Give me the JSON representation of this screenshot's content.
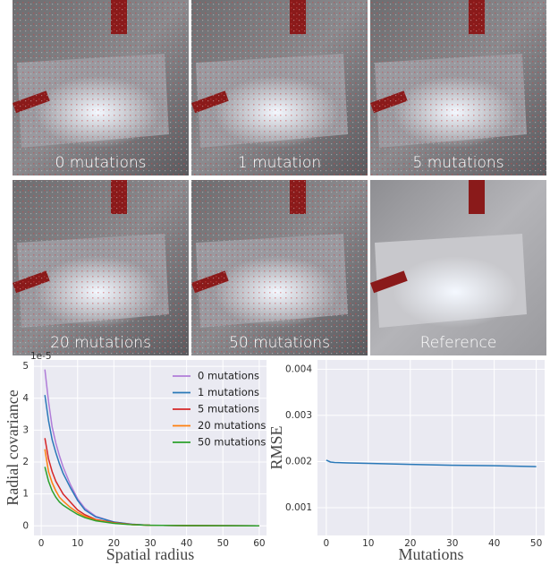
{
  "images": [
    {
      "caption": "0 mutations"
    },
    {
      "caption": "1 mutation"
    },
    {
      "caption": "5 mutations"
    },
    {
      "caption": "20 mutations"
    },
    {
      "caption": "50 mutations"
    },
    {
      "caption": "Reference"
    }
  ],
  "chart_data": [
    {
      "type": "line",
      "xlabel": "Spatial radius",
      "ylabel": "Radial covariance",
      "y_offset_label": "1e-5",
      "x": [
        1,
        2,
        3,
        4,
        5,
        6,
        8,
        10,
        12,
        15,
        20,
        25,
        30,
        40,
        50,
        60
      ],
      "series": [
        {
          "name": "0 mutations",
          "color": "#b07cd8",
          "values": [
            4.9,
            3.9,
            3.1,
            2.6,
            2.2,
            1.85,
            1.3,
            0.85,
            0.55,
            0.3,
            0.12,
            0.05,
            0.02,
            0.01,
            0.005,
            0
          ]
        },
        {
          "name": "1 mutations",
          "color": "#2a78b8",
          "values": [
            4.1,
            3.3,
            2.7,
            2.3,
            1.95,
            1.65,
            1.2,
            0.8,
            0.5,
            0.28,
            0.12,
            0.05,
            0.02,
            0.01,
            0.005,
            0
          ]
        },
        {
          "name": "5 mutations",
          "color": "#d62728",
          "values": [
            2.75,
            2.1,
            1.7,
            1.4,
            1.2,
            1.0,
            0.75,
            0.5,
            0.35,
            0.2,
            0.1,
            0.04,
            0.02,
            0.01,
            0.005,
            0
          ]
        },
        {
          "name": "20 mutations",
          "color": "#ff7f0e",
          "values": [
            2.4,
            1.7,
            1.35,
            1.1,
            0.9,
            0.78,
            0.58,
            0.42,
            0.3,
            0.18,
            0.09,
            0.04,
            0.02,
            0.01,
            0.005,
            0
          ]
        },
        {
          "name": "50 mutations",
          "color": "#2ca02c",
          "values": [
            1.85,
            1.4,
            1.1,
            0.9,
            0.75,
            0.65,
            0.5,
            0.36,
            0.26,
            0.16,
            0.08,
            0.035,
            0.02,
            0.01,
            0.005,
            0
          ]
        }
      ],
      "xlim": [
        -2,
        62
      ],
      "ylim": [
        -0.3,
        5.2
      ],
      "xticks": [
        0,
        10,
        20,
        30,
        40,
        50,
        60
      ],
      "yticks": [
        0,
        1,
        2,
        3,
        4,
        5
      ],
      "grid": true,
      "legend": "upper right"
    },
    {
      "type": "line",
      "xlabel": "Mutations",
      "ylabel": "RMSE",
      "x": [
        0,
        1,
        2,
        5,
        10,
        20,
        30,
        40,
        50
      ],
      "series": [
        {
          "color": "#2a78b8",
          "values": [
            0.00203,
            0.00199,
            0.00198,
            0.00197,
            0.00196,
            0.00194,
            0.00192,
            0.00191,
            0.00189
          ]
        }
      ],
      "xlim": [
        -2.1,
        52
      ],
      "ylim": [
        0.0004,
        0.0042
      ],
      "xticks": [
        0,
        10,
        20,
        30,
        40,
        50
      ],
      "yticks": [
        0.001,
        0.002,
        0.003,
        0.004
      ],
      "grid": true
    }
  ]
}
